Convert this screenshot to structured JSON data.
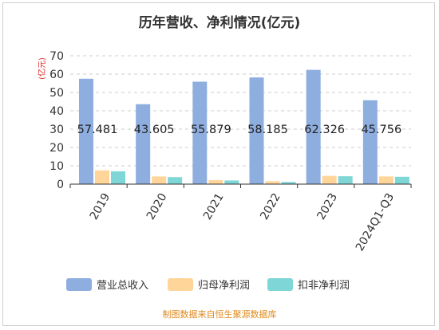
{
  "chart_data": {
    "type": "bar",
    "title": "历年营收、净利情况(亿元)",
    "unit_label": "(亿元)",
    "categories": [
      "2019",
      "2020",
      "2021",
      "2022",
      "2023",
      "2024Q1-Q3"
    ],
    "series": [
      {
        "name": "营业总收入",
        "color": "#8eaee0",
        "values": [
          57.481,
          43.605,
          55.879,
          58.185,
          62.326,
          45.756
        ]
      },
      {
        "name": "归母净利润",
        "color": "#ffd59a",
        "values": [
          7.5,
          4.2,
          2.2,
          1.6,
          4.5,
          4.2
        ]
      },
      {
        "name": "扣非净利润",
        "color": "#7fd6d6",
        "values": [
          7.0,
          3.8,
          2.0,
          1.2,
          4.3,
          4.0
        ]
      }
    ],
    "data_labels": [
      "57.481",
      "43.605",
      "55.879",
      "58.185",
      "62.326",
      "45.756"
    ],
    "ylim": [
      0,
      70
    ],
    "yticks": [
      "0",
      "10",
      "20",
      "30",
      "40",
      "50",
      "60",
      "70"
    ],
    "grid": true,
    "legend_position": "bottom"
  },
  "source_text": "制图数据来自恒生聚源数据库"
}
